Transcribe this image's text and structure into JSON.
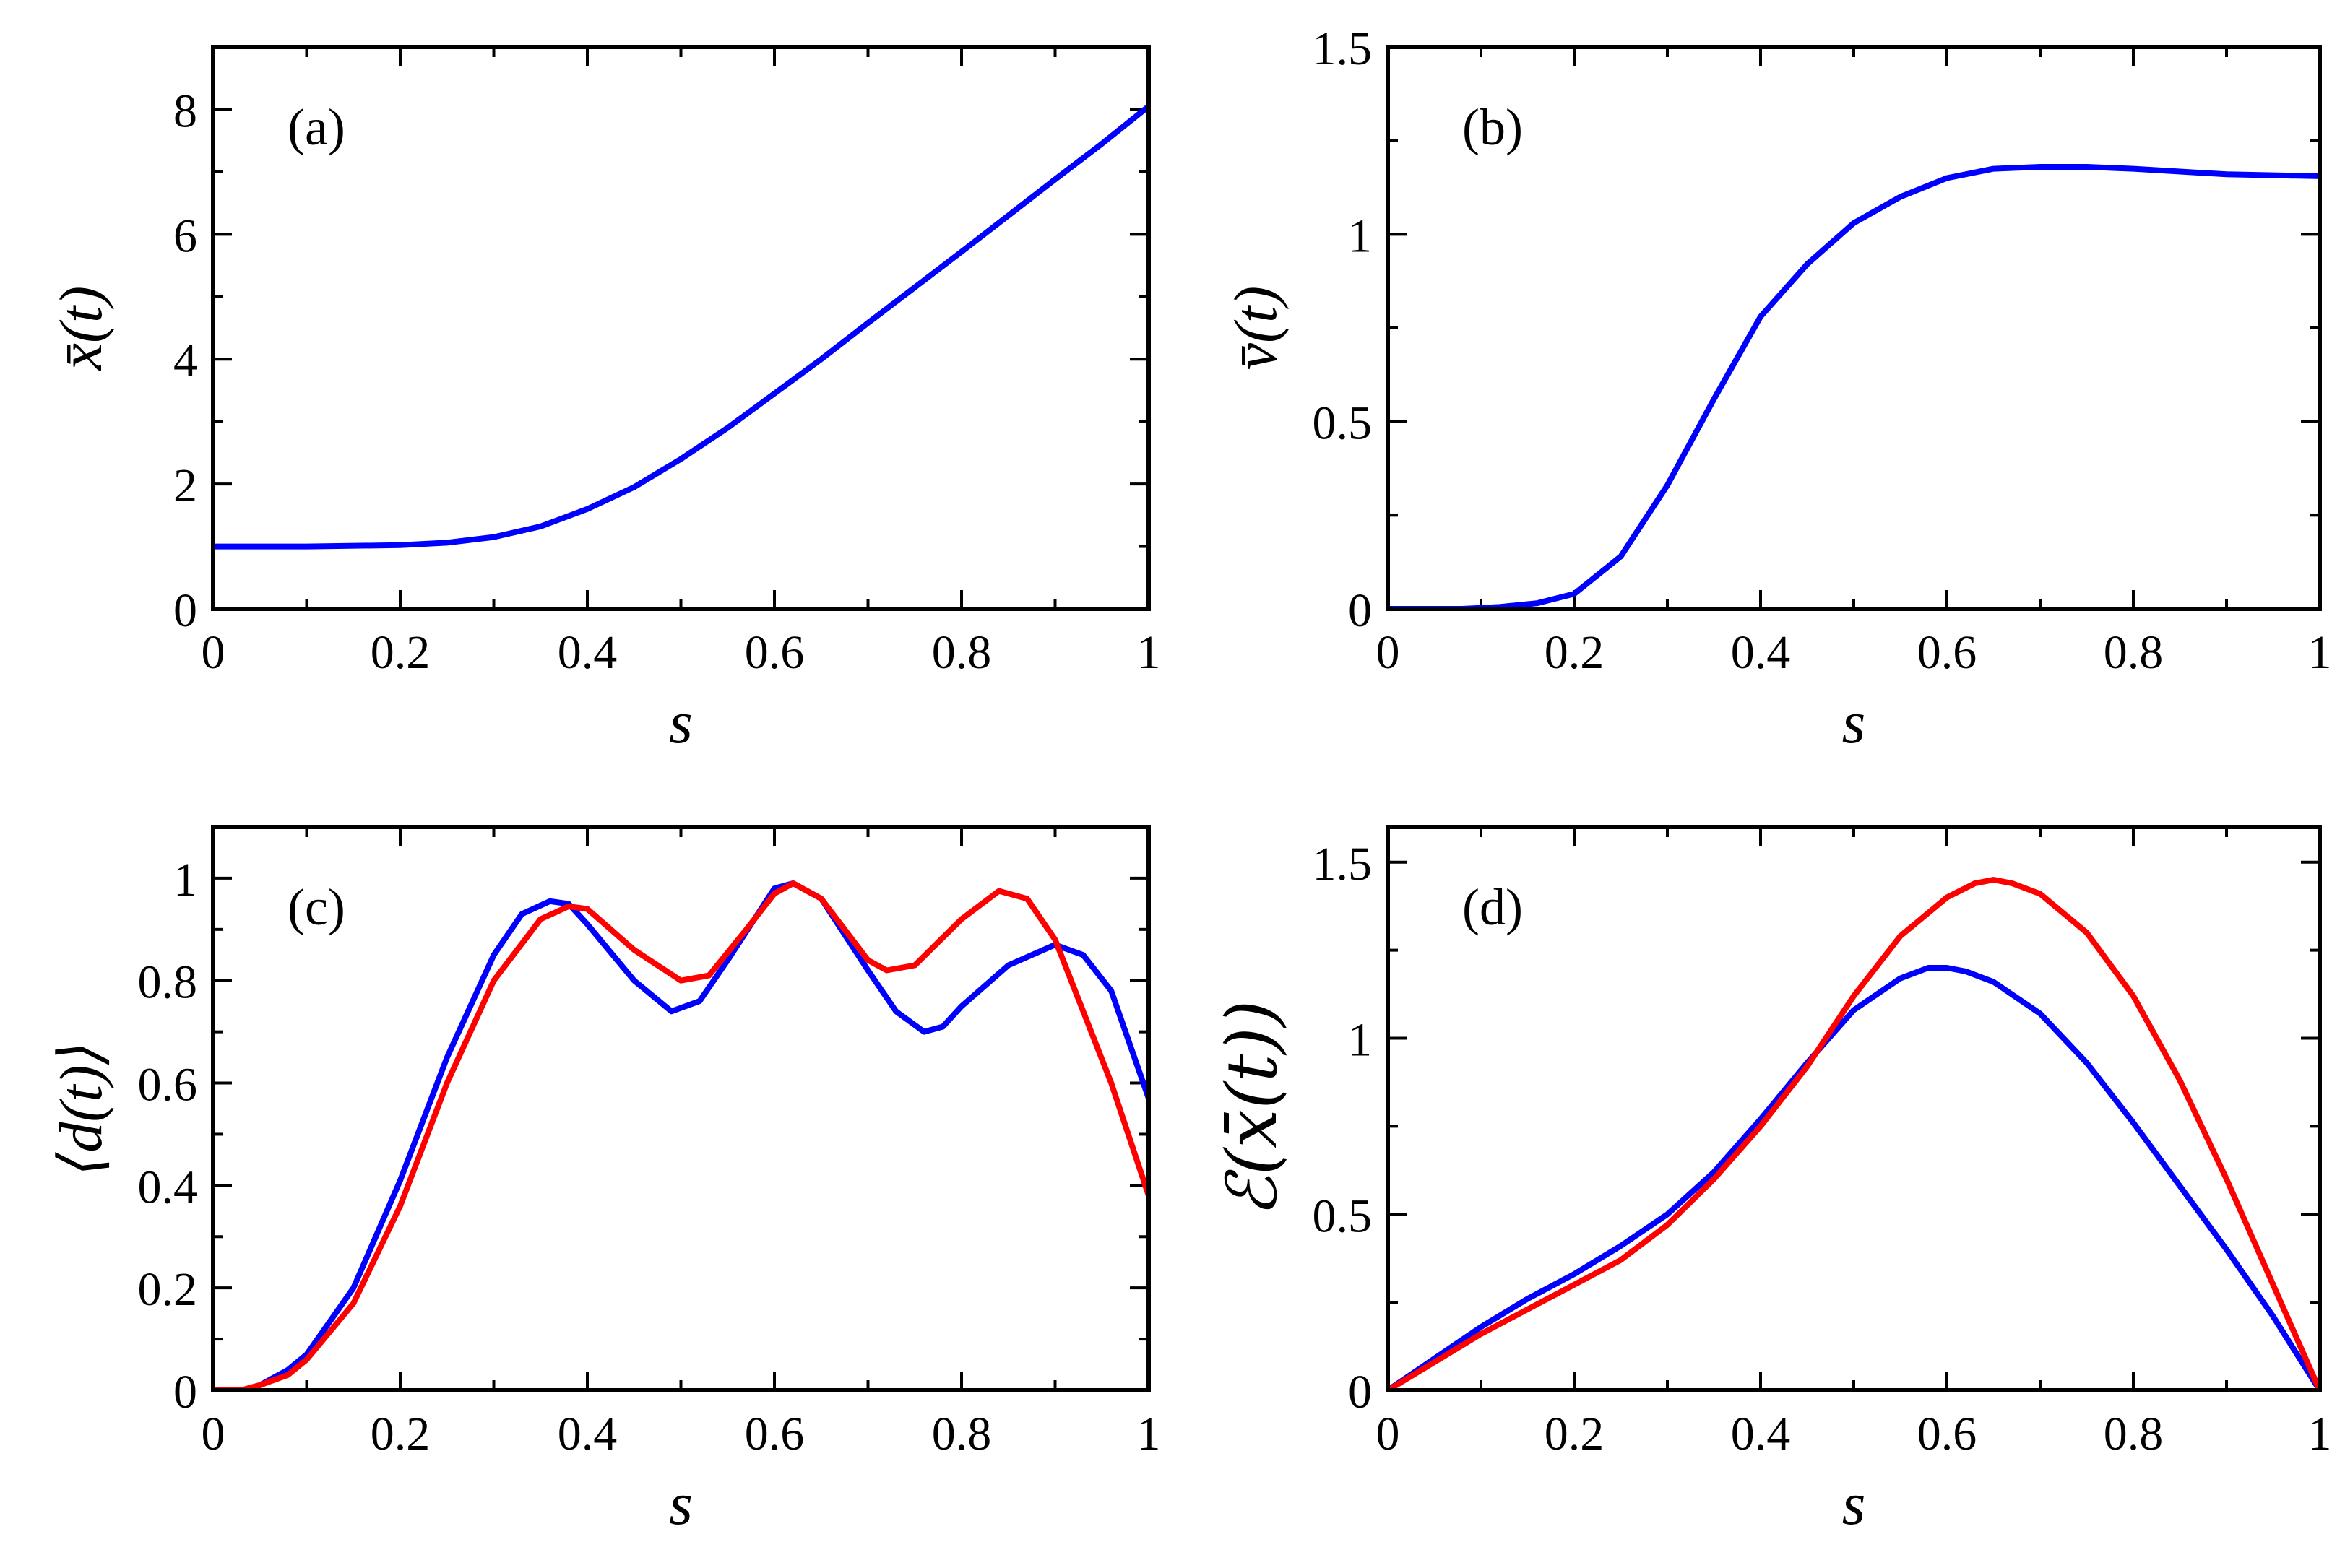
{
  "colors": {
    "blue": "#0000ff",
    "red": "#ff0000",
    "axis": "#000000"
  },
  "chart_data": [
    {
      "type": "line",
      "panel_label": "(a)",
      "xlabel": "s",
      "ylabel": "x̄(t)",
      "xlim": [
        0,
        1
      ],
      "ylim": [
        0,
        9
      ],
      "xticks": [
        0,
        0.2,
        0.4,
        0.6,
        0.8,
        1
      ],
      "xtick_labels": [
        "0",
        "0.2",
        "0.4",
        "0.6",
        "0.8",
        "1"
      ],
      "yticks": [
        0,
        2,
        4,
        6,
        8
      ],
      "ytick_labels": [
        "0",
        "2",
        "4",
        "6",
        "8"
      ],
      "series": [
        {
          "name": "blue",
          "color": "#0000ff",
          "x": [
            0,
            0.1,
            0.2,
            0.25,
            0.3,
            0.35,
            0.4,
            0.45,
            0.5,
            0.55,
            0.6,
            0.65,
            0.7,
            0.75,
            0.8,
            0.85,
            0.9,
            0.95,
            1.0
          ],
          "y": [
            1.0,
            1.0,
            1.02,
            1.06,
            1.15,
            1.32,
            1.6,
            1.95,
            2.4,
            2.9,
            3.45,
            4.0,
            4.58,
            5.15,
            5.72,
            6.3,
            6.88,
            7.45,
            8.05
          ]
        }
      ]
    },
    {
      "type": "line",
      "panel_label": "(b)",
      "xlabel": "s",
      "ylabel": "v̄(t)",
      "xlim": [
        0,
        1
      ],
      "ylim": [
        0,
        1.5
      ],
      "xticks": [
        0,
        0.2,
        0.4,
        0.6,
        0.8,
        1
      ],
      "xtick_labels": [
        "0",
        "0.2",
        "0.4",
        "0.6",
        "0.8",
        "1"
      ],
      "yticks": [
        0,
        0.5,
        1,
        1.5
      ],
      "ytick_labels": [
        "0",
        "0.5",
        "1",
        "1.5"
      ],
      "series": [
        {
          "name": "blue",
          "color": "#0000ff",
          "x": [
            0,
            0.08,
            0.12,
            0.16,
            0.2,
            0.25,
            0.3,
            0.35,
            0.4,
            0.45,
            0.5,
            0.55,
            0.6,
            0.65,
            0.7,
            0.75,
            0.8,
            0.9,
            1.0
          ],
          "y": [
            0,
            0.0,
            0.005,
            0.015,
            0.04,
            0.14,
            0.33,
            0.56,
            0.78,
            0.92,
            1.03,
            1.1,
            1.15,
            1.175,
            1.18,
            1.18,
            1.175,
            1.16,
            1.155
          ]
        }
      ]
    },
    {
      "type": "line",
      "panel_label": "(c)",
      "xlabel": "s",
      "ylabel": "⟨d(t)⟩",
      "xlim": [
        0,
        1
      ],
      "ylim": [
        0,
        1.1
      ],
      "xticks": [
        0,
        0.2,
        0.4,
        0.6,
        0.8,
        1
      ],
      "xtick_labels": [
        "0",
        "0.2",
        "0.4",
        "0.6",
        "0.8",
        "1"
      ],
      "yticks": [
        0,
        0.2,
        0.4,
        0.6,
        0.8,
        1
      ],
      "ytick_labels": [
        "0",
        "0.2",
        "0.4",
        "0.6",
        "0.8",
        "1"
      ],
      "series": [
        {
          "name": "blue",
          "color": "#0000ff",
          "x": [
            0,
            0.03,
            0.05,
            0.08,
            0.1,
            0.15,
            0.2,
            0.25,
            0.3,
            0.33,
            0.36,
            0.38,
            0.4,
            0.45,
            0.49,
            0.52,
            0.55,
            0.6,
            0.62,
            0.65,
            0.7,
            0.73,
            0.76,
            0.78,
            0.8,
            0.85,
            0.9,
            0.93,
            0.96,
            1.0
          ],
          "y": [
            0,
            0.0,
            0.01,
            0.04,
            0.07,
            0.2,
            0.41,
            0.65,
            0.85,
            0.93,
            0.955,
            0.95,
            0.91,
            0.8,
            0.74,
            0.76,
            0.84,
            0.98,
            0.99,
            0.96,
            0.82,
            0.74,
            0.7,
            0.71,
            0.75,
            0.83,
            0.87,
            0.85,
            0.78,
            0.57
          ]
        },
        {
          "name": "red",
          "color": "#ff0000",
          "x": [
            0,
            0.03,
            0.05,
            0.08,
            0.1,
            0.15,
            0.2,
            0.25,
            0.3,
            0.35,
            0.38,
            0.4,
            0.45,
            0.5,
            0.53,
            0.57,
            0.6,
            0.62,
            0.65,
            0.7,
            0.72,
            0.75,
            0.8,
            0.84,
            0.87,
            0.9,
            0.93,
            0.96,
            1.0
          ],
          "y": [
            0,
            0.0,
            0.01,
            0.03,
            0.06,
            0.17,
            0.36,
            0.6,
            0.8,
            0.92,
            0.945,
            0.94,
            0.86,
            0.8,
            0.81,
            0.9,
            0.97,
            0.99,
            0.96,
            0.84,
            0.82,
            0.83,
            0.92,
            0.975,
            0.96,
            0.88,
            0.74,
            0.6,
            0.38
          ]
        }
      ]
    },
    {
      "type": "line",
      "panel_label": "(d)",
      "xlabel": "s",
      "ylabel": "ℰ(x̄(t))",
      "xlim": [
        0,
        1
      ],
      "ylim": [
        0,
        1.6
      ],
      "xticks": [
        0,
        0.2,
        0.4,
        0.6,
        0.8,
        1
      ],
      "xtick_labels": [
        "0",
        "0.2",
        "0.4",
        "0.6",
        "0.8",
        "1"
      ],
      "yticks": [
        0,
        0.5,
        1,
        1.5
      ],
      "ytick_labels": [
        "0",
        "0.5",
        "1",
        "1.5"
      ],
      "series": [
        {
          "name": "blue",
          "color": "#0000ff",
          "x": [
            0,
            0.05,
            0.1,
            0.15,
            0.2,
            0.25,
            0.3,
            0.35,
            0.4,
            0.45,
            0.5,
            0.55,
            0.58,
            0.6,
            0.62,
            0.65,
            0.7,
            0.75,
            0.8,
            0.85,
            0.9,
            0.95,
            1.0
          ],
          "y": [
            0,
            0.09,
            0.18,
            0.26,
            0.33,
            0.41,
            0.5,
            0.62,
            0.77,
            0.93,
            1.08,
            1.17,
            1.2,
            1.2,
            1.19,
            1.16,
            1.07,
            0.93,
            0.76,
            0.58,
            0.4,
            0.21,
            0.0
          ]
        },
        {
          "name": "red",
          "color": "#ff0000",
          "x": [
            0,
            0.05,
            0.1,
            0.15,
            0.2,
            0.25,
            0.3,
            0.35,
            0.4,
            0.45,
            0.5,
            0.55,
            0.6,
            0.63,
            0.65,
            0.67,
            0.7,
            0.75,
            0.8,
            0.85,
            0.9,
            0.95,
            1.0
          ],
          "y": [
            0,
            0.08,
            0.16,
            0.23,
            0.3,
            0.37,
            0.47,
            0.6,
            0.75,
            0.92,
            1.12,
            1.29,
            1.4,
            1.44,
            1.45,
            1.44,
            1.41,
            1.3,
            1.12,
            0.88,
            0.6,
            0.3,
            0.0
          ]
        }
      ]
    }
  ]
}
